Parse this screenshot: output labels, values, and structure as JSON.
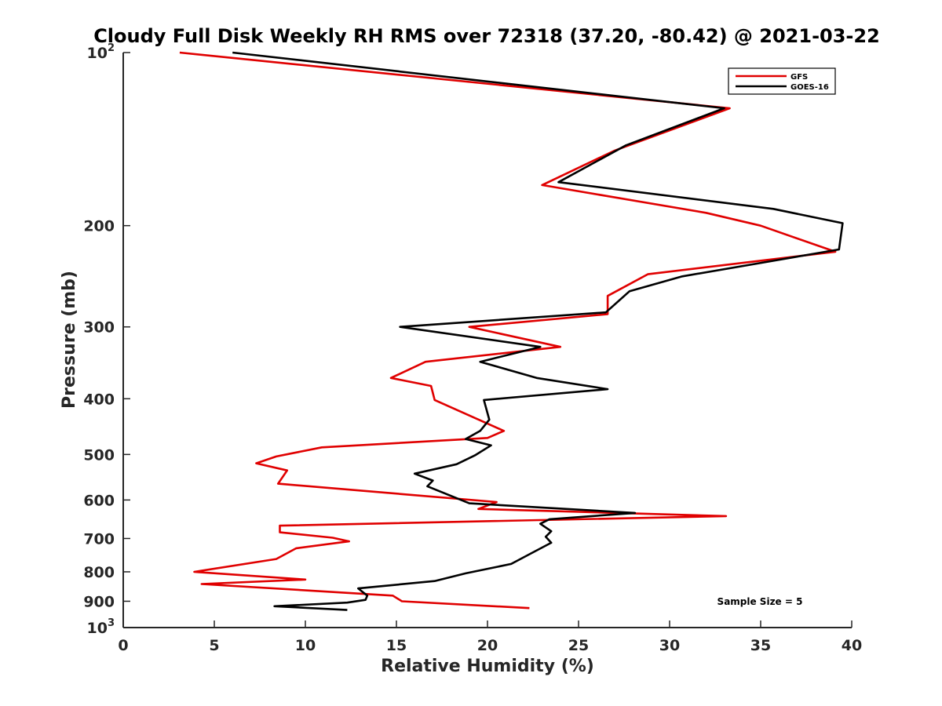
{
  "chart_data": {
    "type": "line",
    "title": "Cloudy Full Disk Weekly RH RMS over 72318 (37.20, -80.42) @ 2021-03-22",
    "xlabel": "Relative Humidity (%)",
    "ylabel": "Pressure (mb)",
    "xlim": [
      0,
      40
    ],
    "ylim": [
      100,
      1000
    ],
    "yscale": "log",
    "y_reversed": true,
    "xticks": [
      0,
      5,
      10,
      15,
      20,
      25,
      30,
      35,
      40
    ],
    "xtick_labels": [
      "0",
      "5",
      "10",
      "15",
      "20",
      "25",
      "30",
      "35",
      "40"
    ],
    "yticks": [
      {
        "value": 100,
        "base": "10",
        "exp": "2"
      },
      {
        "value": 200,
        "label": "200"
      },
      {
        "value": 300,
        "label": "300"
      },
      {
        "value": 400,
        "label": "400"
      },
      {
        "value": 500,
        "label": "500"
      },
      {
        "value": 600,
        "label": "600"
      },
      {
        "value": 700,
        "label": "700"
      },
      {
        "value": 800,
        "label": "800"
      },
      {
        "value": 900,
        "label": "900"
      },
      {
        "value": 1000,
        "base": "10",
        "exp": "3"
      }
    ],
    "legend": {
      "position": "top-right"
    },
    "annotation": "Sample Size = 5",
    "series": [
      {
        "name": "GFS",
        "color": "#e00000",
        "x": [
          3.1,
          33.3,
          27.0,
          23.0,
          32.0,
          35.0,
          39.1,
          28.8,
          26.6,
          26.6,
          19.0,
          24.0,
          16.6,
          14.7,
          16.9,
          17.1,
          20.9,
          20.0,
          10.9,
          8.4,
          7.3,
          9.0,
          8.5,
          20.5,
          19.5,
          33.1,
          8.6,
          8.6,
          11.5,
          12.4,
          9.5,
          8.4,
          3.9,
          10.0,
          4.3,
          14.8,
          15.3,
          22.3
        ],
        "y": [
          100,
          125,
          148,
          170,
          190,
          200,
          222,
          243,
          265,
          285,
          300,
          325,
          345,
          368,
          380,
          402,
          455,
          468,
          486,
          504,
          518,
          533,
          562,
          605,
          622,
          640,
          665,
          683,
          698,
          708,
          728,
          760,
          800,
          825,
          840,
          880,
          900,
          925
        ]
      },
      {
        "name": "GOES-16",
        "color": "#000000",
        "x": [
          6.0,
          33.0,
          27.6,
          23.9,
          35.7,
          39.5,
          39.3,
          30.7,
          27.8,
          26.5,
          15.2,
          22.9,
          19.6,
          22.7,
          26.6,
          19.8,
          20.1,
          19.6,
          18.8,
          20.2,
          19.3,
          18.3,
          16.0,
          17.0,
          16.7,
          19.0,
          28.1,
          23.4,
          22.9,
          23.5,
          23.2,
          23.5,
          22.5,
          21.3,
          18.8,
          17.1,
          12.9,
          13.4,
          13.3,
          12.3,
          8.3,
          12.3
        ],
        "y": [
          100,
          125,
          145,
          168,
          187,
          198,
          220,
          245,
          260,
          283,
          300,
          325,
          345,
          368,
          385,
          402,
          435,
          455,
          470,
          482,
          502,
          520,
          540,
          555,
          568,
          608,
          632,
          648,
          660,
          680,
          695,
          712,
          740,
          775,
          805,
          830,
          855,
          880,
          895,
          905,
          918,
          932
        ]
      }
    ]
  }
}
